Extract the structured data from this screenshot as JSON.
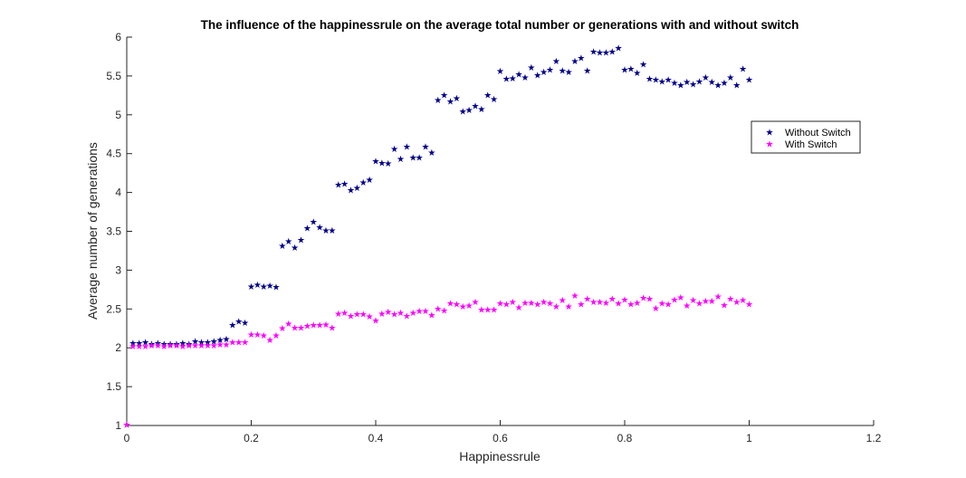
{
  "chart_data": {
    "type": "scatter",
    "title": "The influence of the happinessrule on the average total number or generations with and without switch",
    "xlabel": "Happinessrule",
    "ylabel": "Average number of generations",
    "xlim": [
      0,
      1.2
    ],
    "ylim": [
      1,
      6
    ],
    "xticks": [
      "0",
      "0.2",
      "0.4",
      "0.6",
      "0.8",
      "1",
      "1.2"
    ],
    "yticks": [
      "1",
      "1.5",
      "2",
      "2.5",
      "3",
      "3.5",
      "4",
      "4.5",
      "5",
      "5.5",
      "6"
    ],
    "grid": false,
    "legend_position": "upper-right",
    "marker": "★",
    "series": [
      {
        "name": "Without Switch",
        "color": "#00008B",
        "x": [
          0,
          0.01,
          0.02,
          0.03,
          0.04,
          0.05,
          0.06,
          0.07,
          0.08,
          0.09,
          0.1,
          0.11,
          0.12,
          0.13,
          0.14,
          0.15,
          0.16,
          0.17,
          0.18,
          0.19,
          0.2,
          0.21,
          0.22,
          0.23,
          0.24,
          0.25,
          0.26,
          0.27,
          0.28,
          0.29,
          0.3,
          0.31,
          0.32,
          0.33,
          0.34,
          0.35,
          0.36,
          0.37,
          0.38,
          0.39,
          0.4,
          0.41,
          0.42,
          0.43,
          0.44,
          0.45,
          0.46,
          0.47,
          0.48,
          0.49,
          0.5,
          0.51,
          0.52,
          0.53,
          0.54,
          0.55,
          0.56,
          0.57,
          0.58,
          0.59,
          0.6,
          0.61,
          0.62,
          0.63,
          0.64,
          0.65,
          0.66,
          0.67,
          0.68,
          0.69,
          0.7,
          0.71,
          0.72,
          0.73,
          0.74,
          0.75,
          0.76,
          0.77,
          0.78,
          0.79,
          0.8,
          0.81,
          0.82,
          0.83,
          0.84,
          0.85,
          0.86,
          0.87,
          0.88,
          0.89,
          0.9,
          0.91,
          0.92,
          0.93,
          0.94,
          0.95,
          0.96,
          0.97,
          0.98,
          0.99,
          1.0
        ],
        "y": [
          1.0,
          2.05,
          2.05,
          2.06,
          2.04,
          2.05,
          2.04,
          2.04,
          2.04,
          2.05,
          2.04,
          2.07,
          2.06,
          2.06,
          2.07,
          2.09,
          2.1,
          2.28,
          2.33,
          2.31,
          2.78,
          2.8,
          2.78,
          2.79,
          2.77,
          3.3,
          3.36,
          3.28,
          3.38,
          3.53,
          3.61,
          3.54,
          3.5,
          3.5,
          4.09,
          4.1,
          4.02,
          4.05,
          4.12,
          4.15,
          4.39,
          4.37,
          4.36,
          4.55,
          4.42,
          4.58,
          4.44,
          4.44,
          4.58,
          4.5,
          5.18,
          5.24,
          5.16,
          5.2,
          5.03,
          5.05,
          5.1,
          5.06,
          5.24,
          5.19,
          5.55,
          5.45,
          5.46,
          5.51,
          5.47,
          5.6,
          5.5,
          5.54,
          5.57,
          5.68,
          5.56,
          5.54,
          5.68,
          5.72,
          5.56,
          5.8,
          5.79,
          5.79,
          5.8,
          5.85,
          5.57,
          5.58,
          5.53,
          5.64,
          5.45,
          5.44,
          5.42,
          5.44,
          5.4,
          5.37,
          5.41,
          5.38,
          5.42,
          5.47,
          5.41,
          5.37,
          5.4,
          5.47,
          5.37,
          5.58,
          5.44
        ]
      },
      {
        "name": "With Switch",
        "color": "#FF00FF",
        "x": [
          0,
          0.01,
          0.02,
          0.03,
          0.04,
          0.05,
          0.06,
          0.07,
          0.08,
          0.09,
          0.1,
          0.11,
          0.12,
          0.13,
          0.14,
          0.15,
          0.16,
          0.17,
          0.18,
          0.19,
          0.2,
          0.21,
          0.22,
          0.23,
          0.24,
          0.25,
          0.26,
          0.27,
          0.28,
          0.29,
          0.3,
          0.31,
          0.32,
          0.33,
          0.34,
          0.35,
          0.36,
          0.37,
          0.38,
          0.39,
          0.4,
          0.41,
          0.42,
          0.43,
          0.44,
          0.45,
          0.46,
          0.47,
          0.48,
          0.49,
          0.5,
          0.51,
          0.52,
          0.53,
          0.54,
          0.55,
          0.56,
          0.57,
          0.58,
          0.59,
          0.6,
          0.61,
          0.62,
          0.63,
          0.64,
          0.65,
          0.66,
          0.67,
          0.68,
          0.69,
          0.7,
          0.71,
          0.72,
          0.73,
          0.74,
          0.75,
          0.76,
          0.77,
          0.78,
          0.79,
          0.8,
          0.81,
          0.82,
          0.83,
          0.84,
          0.85,
          0.86,
          0.87,
          0.88,
          0.89,
          0.9,
          0.91,
          0.92,
          0.93,
          0.94,
          0.95,
          0.96,
          0.97,
          0.98,
          0.99,
          1.0
        ],
        "y": [
          1.0,
          2.01,
          2.01,
          2.01,
          2.02,
          2.02,
          2.01,
          2.02,
          2.02,
          2.01,
          2.02,
          2.02,
          2.02,
          2.02,
          2.02,
          2.03,
          2.03,
          2.06,
          2.06,
          2.06,
          2.16,
          2.16,
          2.15,
          2.09,
          2.15,
          2.24,
          2.3,
          2.25,
          2.25,
          2.27,
          2.28,
          2.28,
          2.29,
          2.25,
          2.43,
          2.44,
          2.4,
          2.42,
          2.42,
          2.39,
          2.34,
          2.43,
          2.45,
          2.42,
          2.44,
          2.4,
          2.44,
          2.46,
          2.46,
          2.41,
          2.49,
          2.47,
          2.56,
          2.55,
          2.52,
          2.53,
          2.58,
          2.48,
          2.48,
          2.48,
          2.56,
          2.55,
          2.58,
          2.51,
          2.57,
          2.57,
          2.55,
          2.58,
          2.56,
          2.52,
          2.6,
          2.52,
          2.66,
          2.55,
          2.62,
          2.58,
          2.58,
          2.57,
          2.62,
          2.56,
          2.61,
          2.55,
          2.57,
          2.63,
          2.62,
          2.5,
          2.56,
          2.55,
          2.61,
          2.64,
          2.53,
          2.6,
          2.56,
          2.59,
          2.59,
          2.65,
          2.54,
          2.62,
          2.58,
          2.6,
          2.55
        ]
      }
    ]
  }
}
